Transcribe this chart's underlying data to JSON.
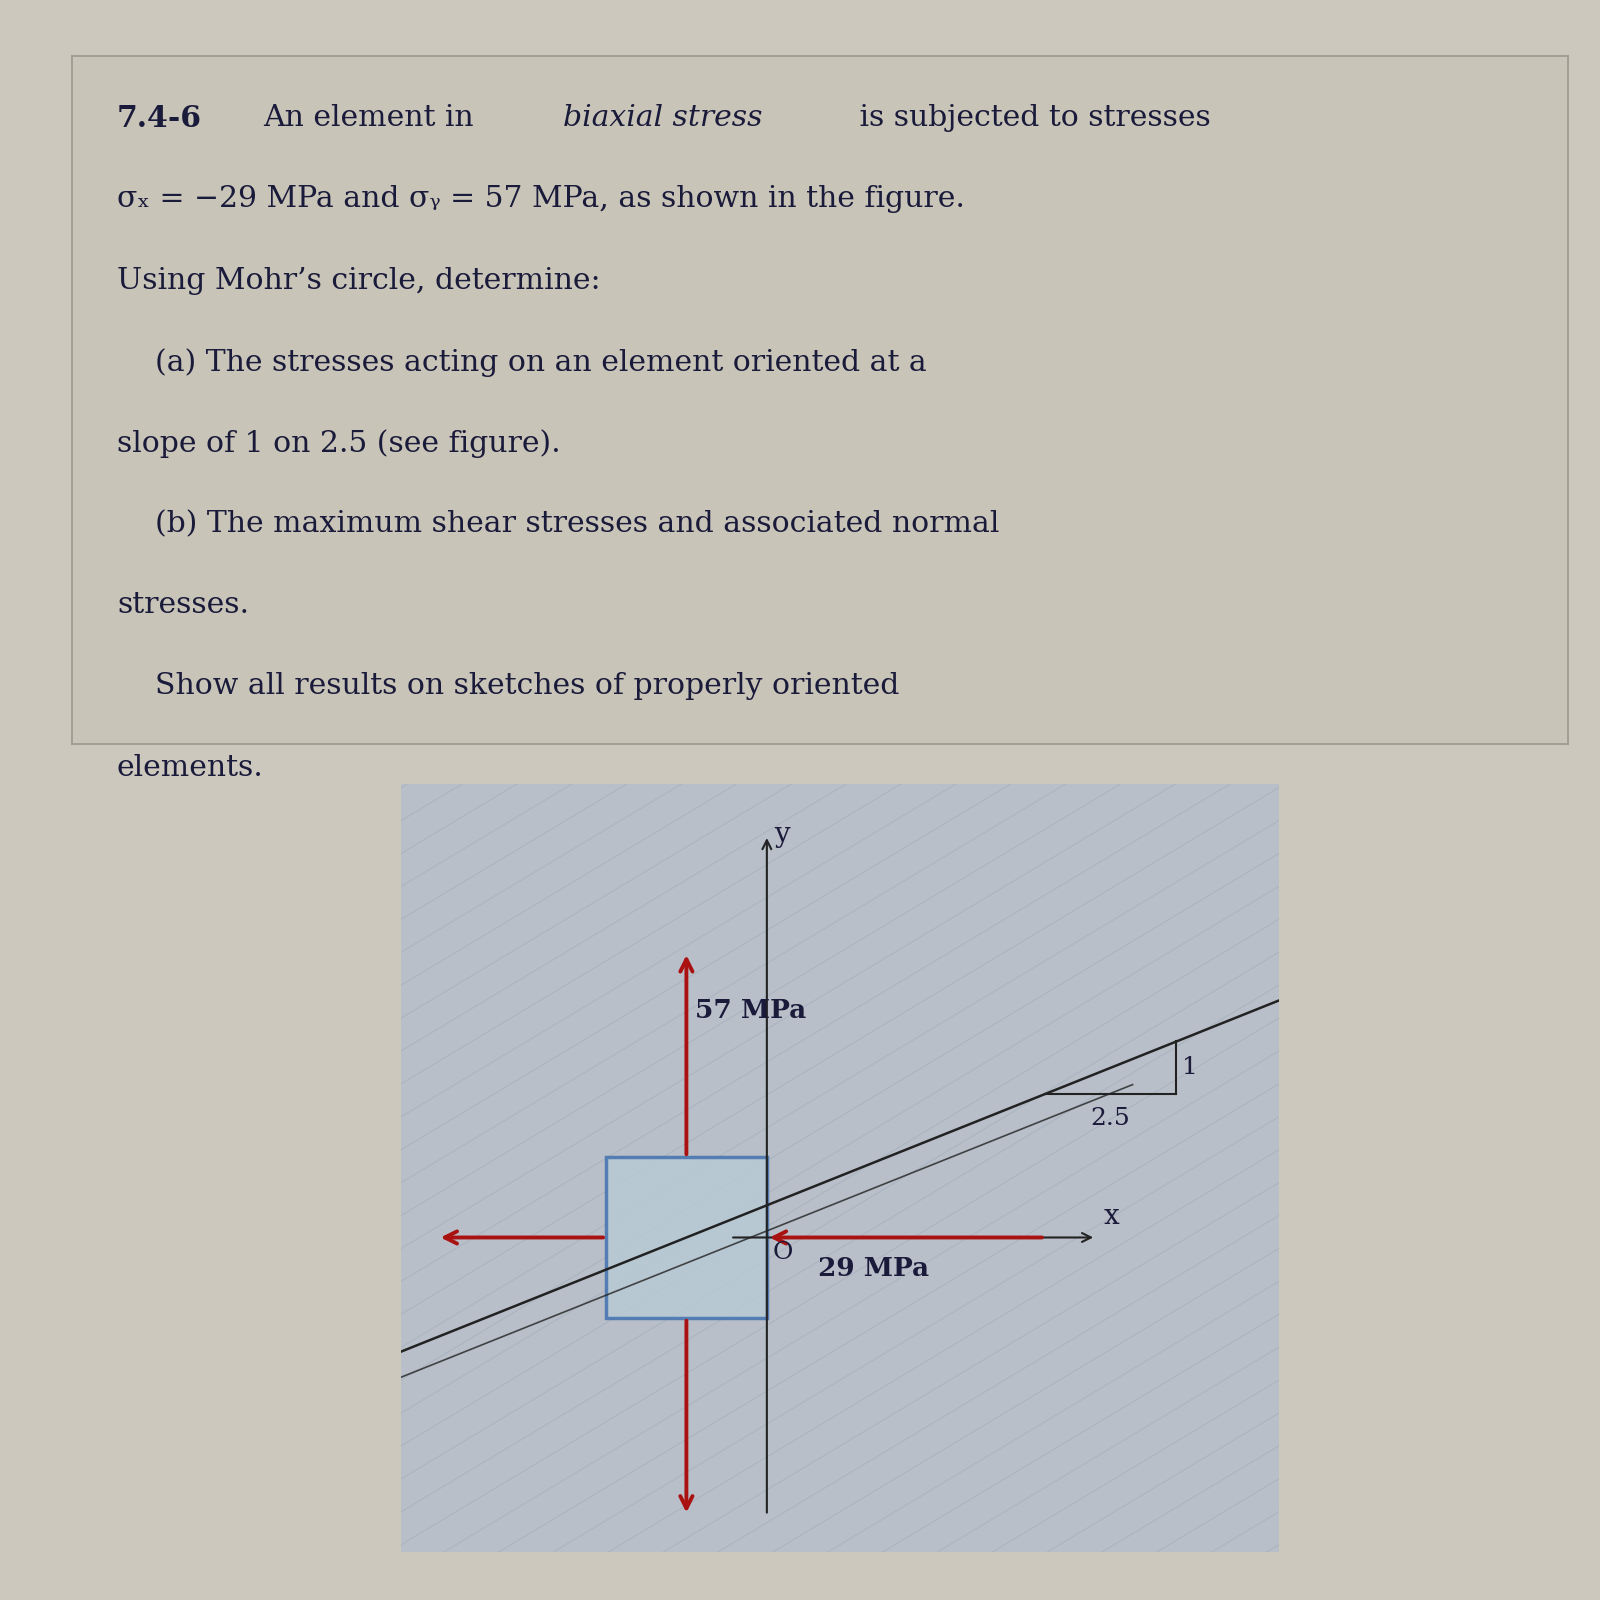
{
  "page_bg": "#ccc8be",
  "text_box_bg": "#c8c4b8",
  "text_box_border": "#999990",
  "diagram_bg": "#b8bfc8",
  "text_color": "#1a1a3a",
  "box_fill": "#b8ccd8",
  "box_edge": "#3366aa",
  "arrow_color": "#aa1111",
  "axis_color": "#222222",
  "slope_line_color": "#222222",
  "hatch_color": "#9aa8b8",
  "label_57": "57 MPa",
  "label_29": "29 MPa",
  "label_x": "x",
  "label_y": "y",
  "label_o": "O",
  "slope_1": "1",
  "slope_25": "2.5",
  "line1_bold": "7.4-6",
  "line1_normal": " An element in ",
  "line1_italic": "biaxial stress",
  "line1_end": " is subjected to stresses",
  "line2": "σₓ = −29 MPa and σᵧ = 57 MPa, as shown in the figure.",
  "line3": "Using Mohr’s circle, determine:",
  "line4": "    (a) The stresses acting on an element oriented at a",
  "line5": "slope of 1 on 2.5 (see figure).",
  "line6": "    (b) The maximum shear stresses and associated normal",
  "line7": "stresses.",
  "line8": "    Show all results on sketches of properly oriented",
  "line9": "elements."
}
